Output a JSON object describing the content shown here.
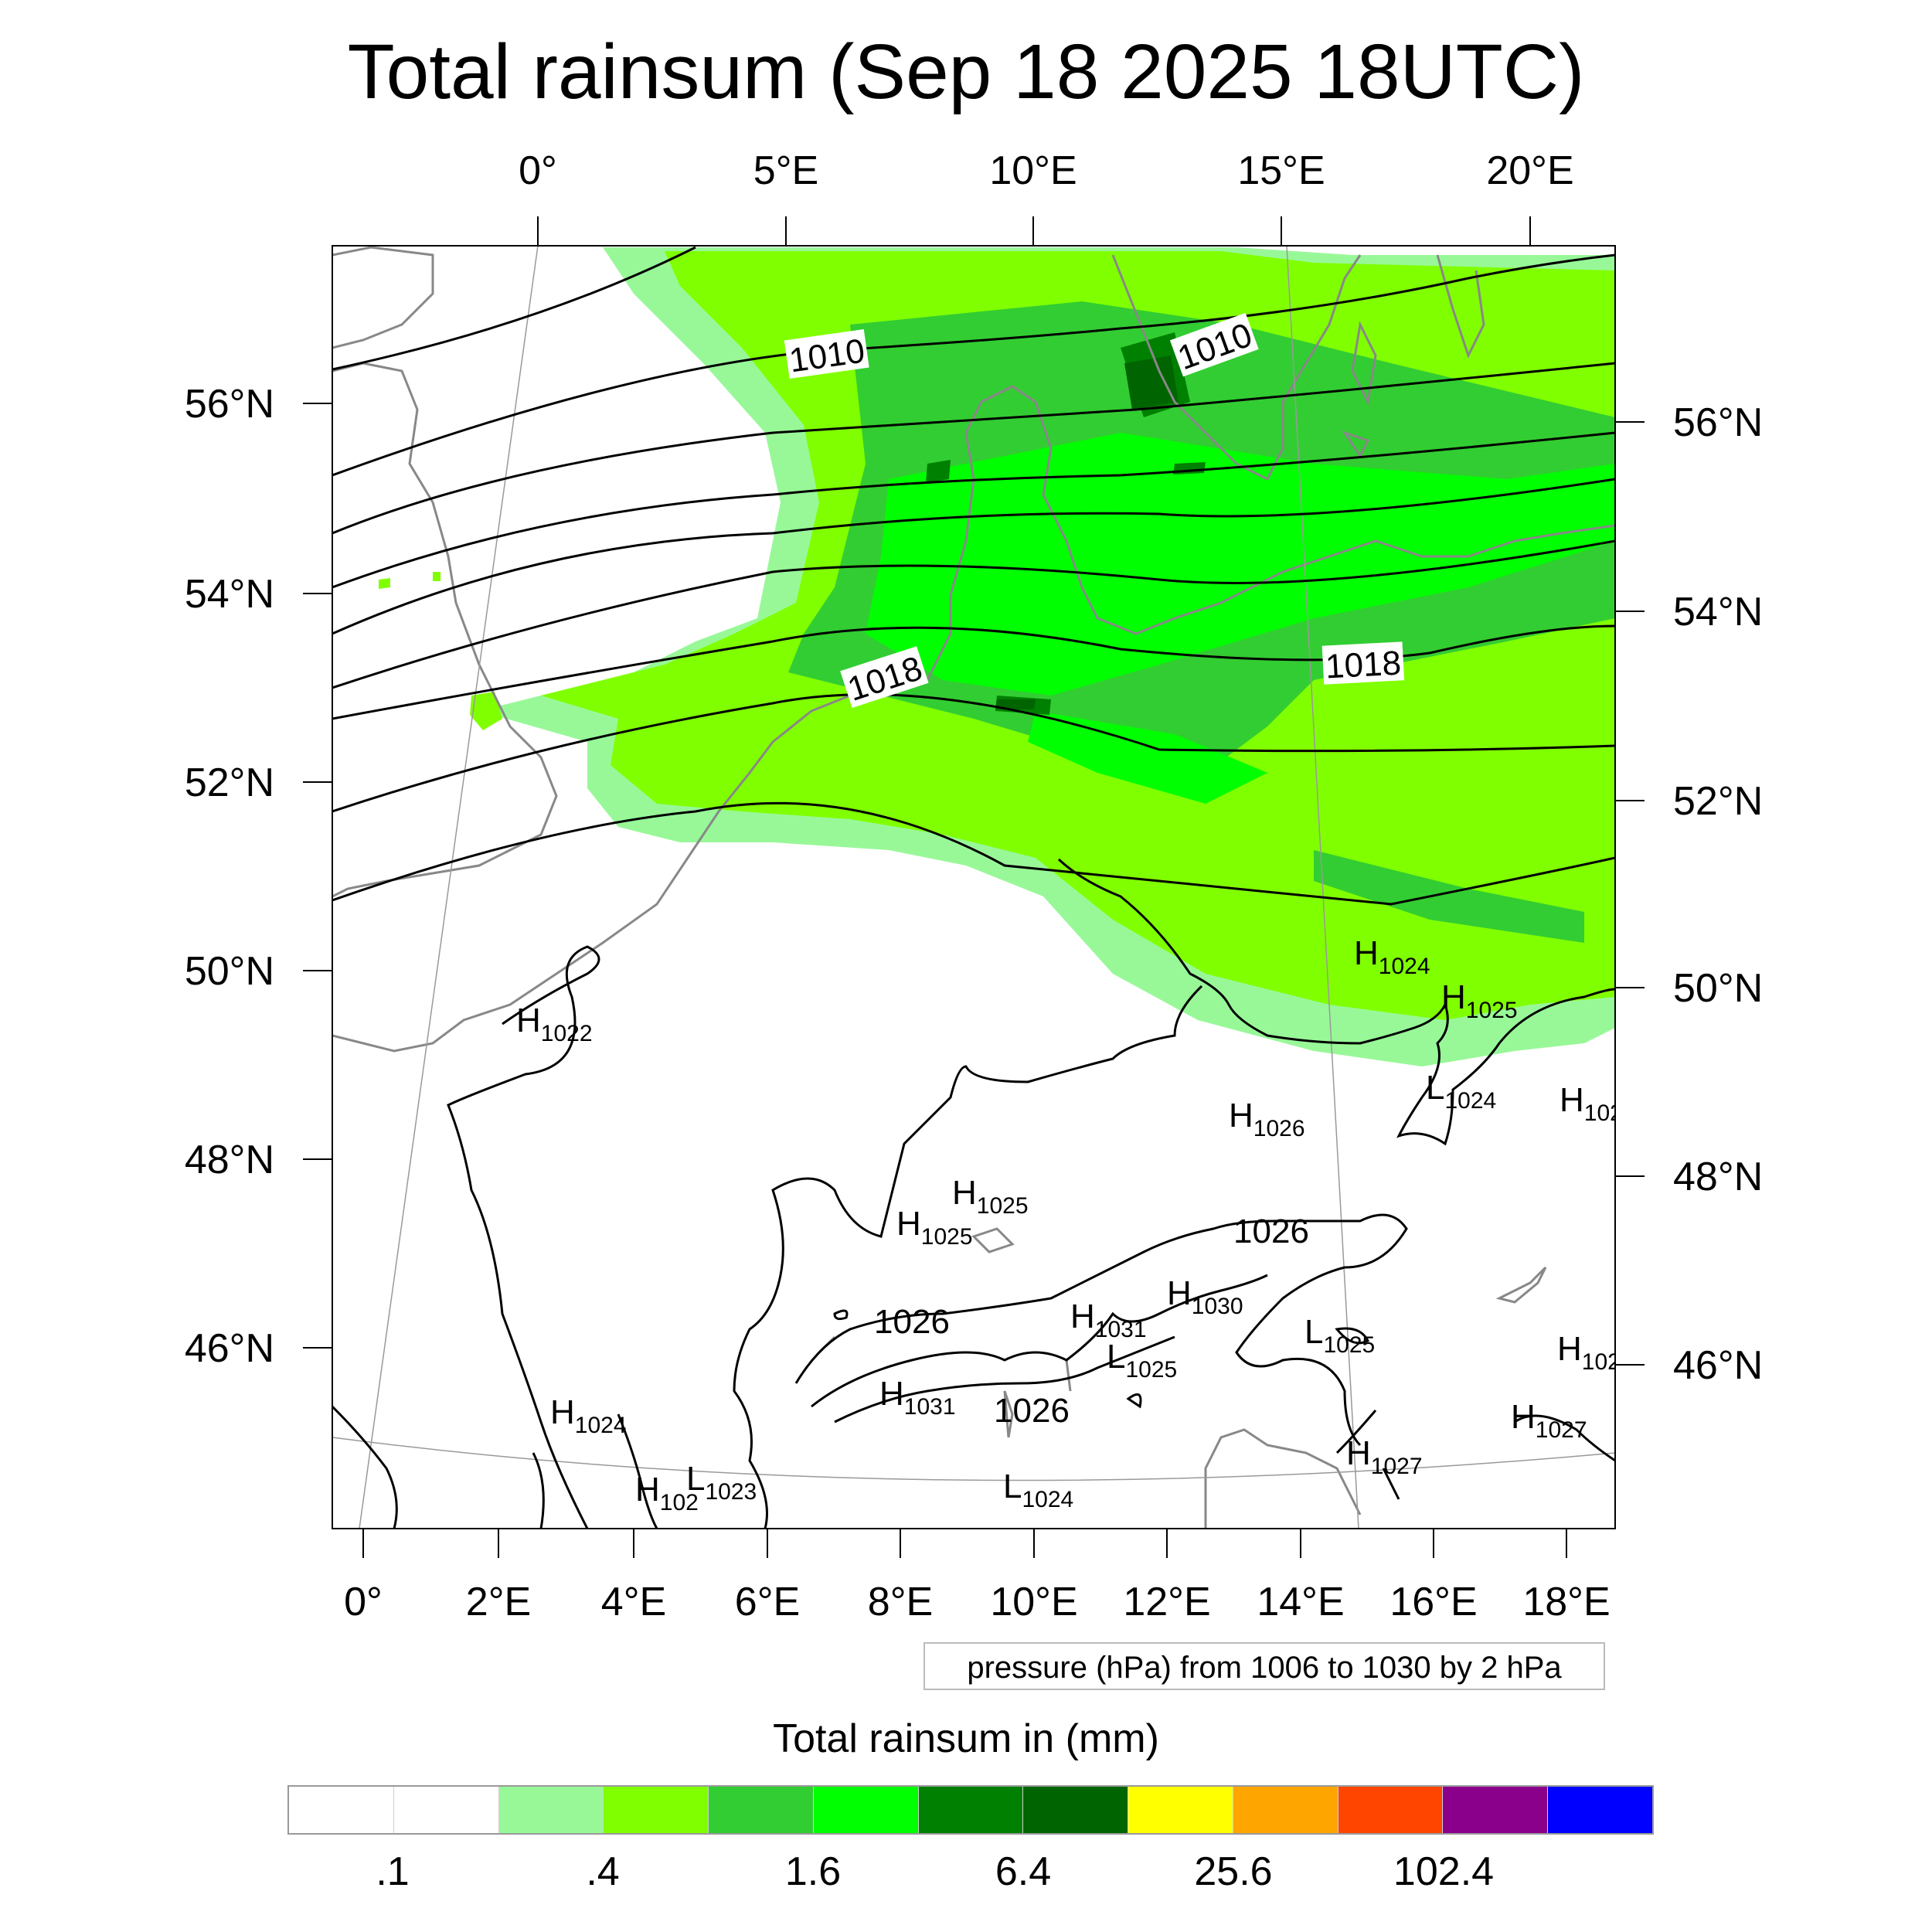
{
  "title": "Total rainsum (Sep 18 2025 18UTC)",
  "map": {
    "top_lon_labels": [
      "0°",
      "5°E",
      "10°E",
      "15°E",
      "20°E"
    ],
    "bottom_lon_labels": [
      "0°",
      "2°E",
      "4°E",
      "6°E",
      "8°E",
      "10°E",
      "12°E",
      "14°E",
      "16°E",
      "18°E"
    ],
    "left_lat_labels": [
      "56°N",
      "54°N",
      "52°N",
      "50°N",
      "48°N",
      "46°N"
    ],
    "right_lat_labels": [
      "56°N",
      "54°N",
      "52°N",
      "50°N",
      "48°N",
      "46°N"
    ],
    "isobar_labels": [
      {
        "text": "1010"
      },
      {
        "text": "1010"
      },
      {
        "text": "1018"
      },
      {
        "text": "1018"
      },
      {
        "text": "1026"
      },
      {
        "text": "1026"
      },
      {
        "text": "1026"
      }
    ],
    "pressure_centers": [
      {
        "letter": "H",
        "value": "1022"
      },
      {
        "letter": "H",
        "value": "1024"
      },
      {
        "letter": "H",
        "value": "1025"
      },
      {
        "letter": "L",
        "value": "1024"
      },
      {
        "letter": "H",
        "value": "1026"
      },
      {
        "letter": "H",
        "value": "102"
      },
      {
        "letter": "H",
        "value": "1025"
      },
      {
        "letter": "H",
        "value": "1025"
      },
      {
        "letter": "H",
        "value": "1030"
      },
      {
        "letter": "H",
        "value": "1031"
      },
      {
        "letter": "L",
        "value": "1025"
      },
      {
        "letter": "L",
        "value": "1025"
      },
      {
        "letter": "H",
        "value": "102"
      },
      {
        "letter": "H",
        "value": "1031"
      },
      {
        "letter": "H",
        "value": "1024"
      },
      {
        "letter": "H",
        "value": "102"
      },
      {
        "letter": "L",
        "value": "1023"
      },
      {
        "letter": "L",
        "value": "1024"
      },
      {
        "letter": "H",
        "value": "1027"
      },
      {
        "letter": "H",
        "value": "1027"
      }
    ],
    "colors": {
      "very_light_green": "#98f898",
      "light_green": "#80ff00",
      "medium_green": "#32cd32",
      "bright_green": "#00ff00",
      "dark_green": "#008000",
      "darkest_green": "#006400",
      "coastline": "#888888",
      "isobar": "#000000"
    }
  },
  "info_box": "pressure (hPa) from 1006 to 1030 by 2 hPa",
  "colorbar": {
    "title": "Total rainsum in (mm)",
    "colors": [
      "#ffffff",
      "#ffffff",
      "#98f898",
      "#80ff00",
      "#32cd32",
      "#00ff00",
      "#008000",
      "#006400",
      "#ffff00",
      "#ffa500",
      "#ff4500",
      "#8b008b",
      "#0000ff"
    ],
    "labels": [
      ".1",
      ".4",
      "1.6",
      "6.4",
      "25.6",
      "102.4"
    ]
  }
}
